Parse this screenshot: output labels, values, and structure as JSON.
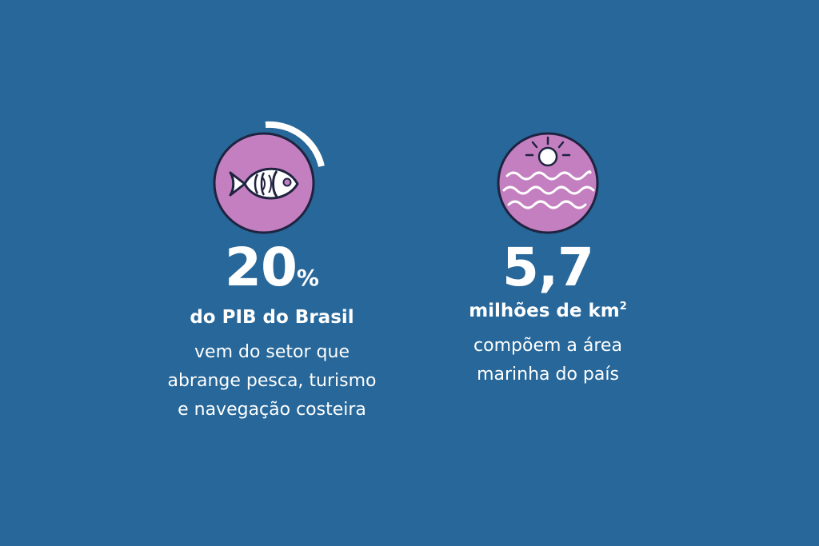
{
  "colors": {
    "background": "#276799",
    "icon_fill": "#c47fc0",
    "icon_stroke": "#1f2340",
    "text": "#ffffff"
  },
  "stats": [
    {
      "icon": "fish-icon",
      "number": "20",
      "unit": "%",
      "headline": "do PIB do Brasil",
      "description_lines": [
        "vem do setor que",
        "abrange pesca, turismo",
        "e navegação costeira"
      ]
    },
    {
      "icon": "sun-waves-icon",
      "number": "5,7",
      "headline": "milhões de km",
      "headline_superscript": "2",
      "description_lines": [
        "compõem a área",
        "marinha do país"
      ]
    }
  ]
}
